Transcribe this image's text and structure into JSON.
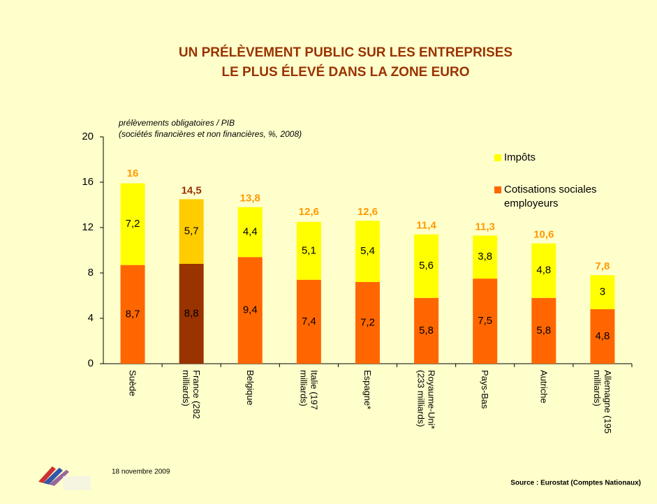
{
  "chart_data": {
    "type": "stacked_bar",
    "title": [
      "UN PRÉLÈVEMENT PUBLIC SUR LES ENTREPRISES",
      "LE PLUS ÉLEVÉ DANS LA ZONE EURO"
    ],
    "y_label": [
      "prélèvements obligatoires / PIB",
      "(sociétés financières et non financières, %, 2008)"
    ],
    "categories": [
      "Suède",
      "France (282 milliards)",
      "Belgique",
      "Italie (197 milliards)",
      "Espagne*",
      "Royaume-Uni* (233 milliards)",
      "Pays-Bas",
      "Autriche",
      "Allemagne (195 milliards)"
    ],
    "series": [
      {
        "name": "Cotisations sociales employeurs",
        "color": "#ff6600",
        "highlight_color": "#993300",
        "values": [
          8.7,
          8.8,
          9.4,
          7.4,
          7.2,
          5.8,
          7.5,
          5.8,
          4.8
        ],
        "value_labels": [
          "8,7",
          "8,8",
          "9,4",
          "7,4",
          "7,2",
          "5,8",
          "7,5",
          "5,8",
          "4,8"
        ]
      },
      {
        "name": "Impôts",
        "color": "#ffff00",
        "highlight_color": "#ffcc00",
        "values": [
          7.2,
          5.7,
          4.4,
          5.1,
          5.4,
          5.6,
          3.8,
          4.8,
          3
        ],
        "value_labels": [
          "7,2",
          "5,7",
          "4,4",
          "5,1",
          "5,4",
          "5,6",
          "3,8",
          "4,8",
          "3"
        ]
      }
    ],
    "totals": [
      16,
      14.5,
      13.8,
      12.6,
      12.6,
      11.4,
      11.3,
      10.6,
      7.8
    ],
    "total_labels": [
      "16",
      "14,5",
      "13,8",
      "12,6",
      "12,6",
      "11,4",
      "11,3",
      "10,6",
      "7,8"
    ],
    "total_color": "#ff9900",
    "highlight_total_color": "#993300",
    "highlight_category": "France (282 milliards)",
    "ylim": [
      0,
      20
    ],
    "yticks": [
      0,
      4,
      8,
      12,
      16,
      20
    ],
    "grid": false,
    "date": "18 novembre 2009",
    "source": "Source : Eurostat (Comptes Nationaux)"
  }
}
